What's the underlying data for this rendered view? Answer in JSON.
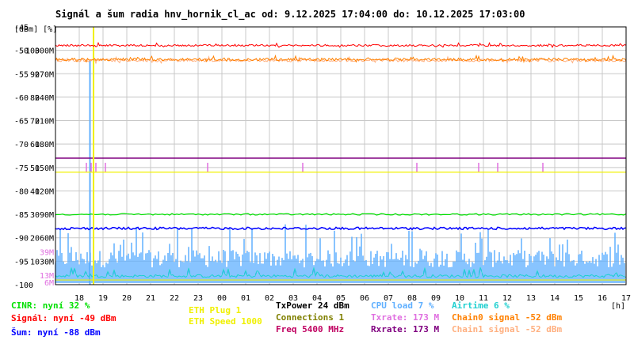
{
  "chart_data": {
    "type": "line",
    "title": "Signál a šum radia hnv_hornik_cl_ac od: 9.12.2025 17:04:00 do: 10.12.2025 17:03:00",
    "ylabel": "[dBm] [%]",
    "xunit": "[h]",
    "x_ticks": [
      "18",
      "19",
      "20",
      "21",
      "22",
      "23",
      "00",
      "01",
      "02",
      "03",
      "04",
      "05",
      "06",
      "07",
      "08",
      "09",
      "10",
      "11",
      "12",
      "13",
      "14",
      "15",
      "16",
      "17"
    ],
    "y_ticks_dbm": [
      -45,
      -50,
      -55,
      -60,
      -65,
      -70,
      -75,
      -80,
      -85,
      -90,
      -95,
      -100
    ],
    "y_ticks_pct": [
      100,
      90,
      80,
      70,
      60,
      50,
      40,
      30,
      20,
      10
    ],
    "y_ticks_rate": [
      "300M",
      "270M",
      "240M",
      "210M",
      "180M",
      "150M",
      "120M",
      "90M",
      "60M",
      "30M"
    ],
    "inline_labels": [
      {
        "text": "39M",
        "color": "#e070e0"
      },
      {
        "text": "13M",
        "color": "#e070e0"
      },
      {
        "text": "6M",
        "color": "#e070e0"
      }
    ],
    "ylim": [
      -100,
      -45
    ],
    "grid": true,
    "series": [
      {
        "name": "CINR",
        "value_label": "nyní 32 %",
        "color": "#00e000",
        "approx_level_pct": 32
      },
      {
        "name": "Signál",
        "value_label": "nyní -49 dBm",
        "color": "#ff0000",
        "approx_level_dbm": -49
      },
      {
        "name": "Šum",
        "value_label": "nyní -88 dBm",
        "color": "#0000ff",
        "approx_level_dbm": -88
      },
      {
        "name": "ETH Plug 1",
        "color": "#f0f000"
      },
      {
        "name": "ETH Speed 1000",
        "color": "#f0f000"
      },
      {
        "name": "TxPower 24 dBm",
        "color": "#000000"
      },
      {
        "name": "Connections 1",
        "color": "#808000"
      },
      {
        "name": "Freq 5400 MHz",
        "color": "#c00060"
      },
      {
        "name": "CPU load 7 %",
        "color": "#60b0ff",
        "approx_level_pct": 7
      },
      {
        "name": "Txrate: 173 M",
        "color": "#e070e0"
      },
      {
        "name": "Rxrate: 173 M",
        "color": "#800080"
      },
      {
        "name": "Airtime 6 %",
        "color": "#20d0d0",
        "approx_level_pct": 6
      },
      {
        "name": "Chain0 signal -52 dBm",
        "color": "#ff8000",
        "approx_level_dbm": -52
      },
      {
        "name": "Chain1 signal -52 dBm",
        "color": "#ffb080",
        "approx_level_dbm": -52
      }
    ]
  }
}
